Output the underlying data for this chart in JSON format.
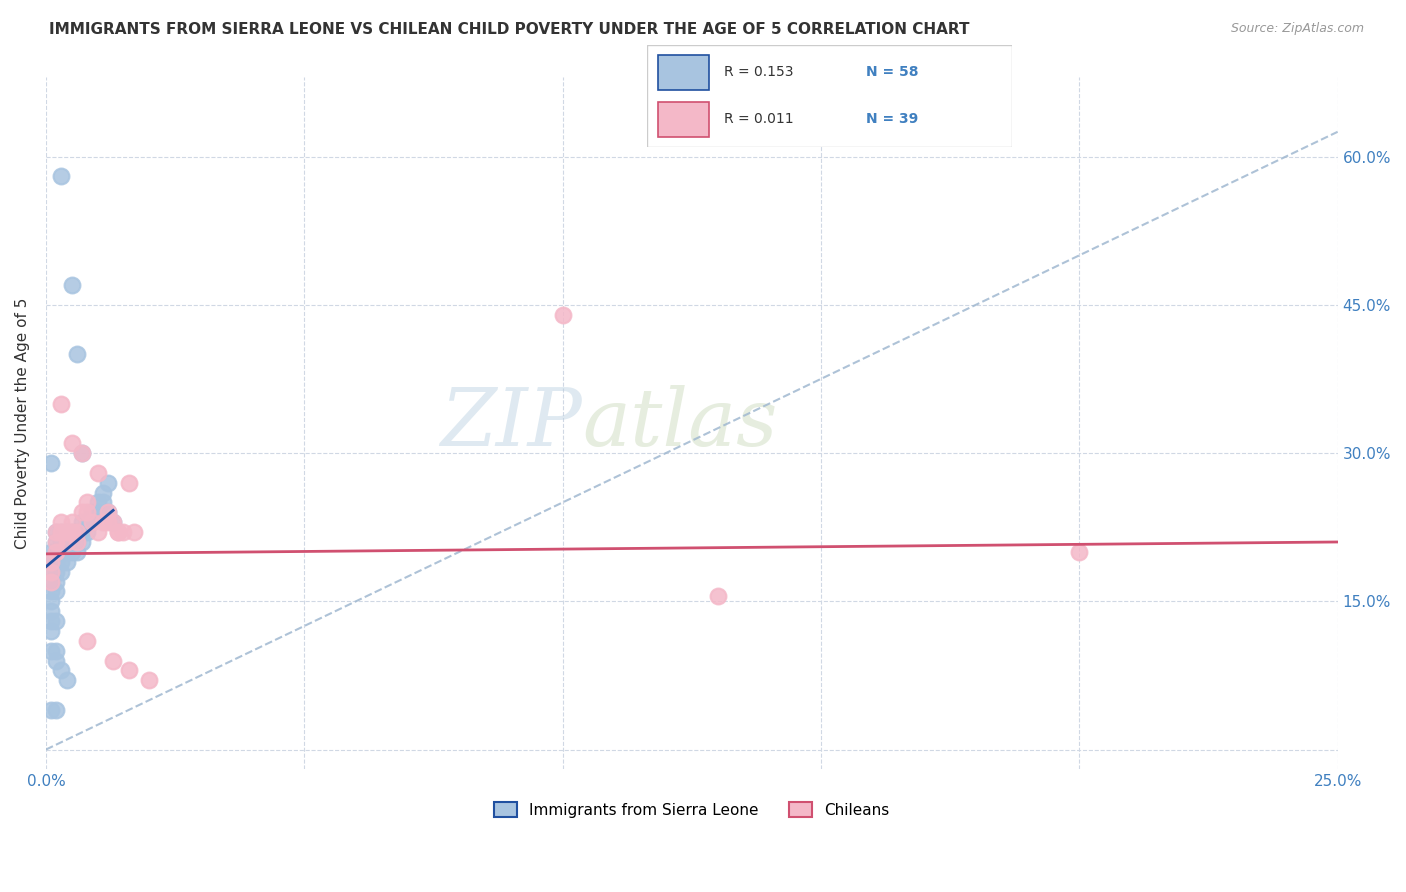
{
  "title": "IMMIGRANTS FROM SIERRA LEONE VS CHILEAN CHILD POVERTY UNDER THE AGE OF 5 CORRELATION CHART",
  "source": "Source: ZipAtlas.com",
  "ylabel": "Child Poverty Under the Age of 5",
  "xlim": [
    0.0,
    0.25
  ],
  "ylim": [
    -0.02,
    0.68
  ],
  "ytick_positions": [
    0.0,
    0.15,
    0.3,
    0.45,
    0.6
  ],
  "xtick_positions": [
    0.0,
    0.05,
    0.1,
    0.15,
    0.2,
    0.25
  ],
  "ytick_labels": [
    "",
    "15.0%",
    "30.0%",
    "45.0%",
    "60.0%"
  ],
  "xtick_labels": [
    "0.0%",
    "",
    "",
    "",
    "",
    "25.0%"
  ],
  "blue_R": "R = 0.153",
  "blue_N": "N = 58",
  "pink_R": "R = 0.011",
  "pink_N": "N = 39",
  "watermark_zip": "ZIP",
  "watermark_atlas": "atlas",
  "blue_color": "#a8c4e0",
  "pink_color": "#f4b8c8",
  "blue_line_color": "#2050a0",
  "pink_line_color": "#d05070",
  "dashed_line_color": "#a0b8d0",
  "legend_label_blue": "Immigrants from Sierra Leone",
  "legend_label_pink": "Chileans",
  "blue_scatter_x": [
    0.001,
    0.001,
    0.001,
    0.001,
    0.001,
    0.001,
    0.001,
    0.001,
    0.002,
    0.002,
    0.002,
    0.002,
    0.002,
    0.002,
    0.002,
    0.003,
    0.003,
    0.003,
    0.003,
    0.003,
    0.004,
    0.004,
    0.004,
    0.004,
    0.005,
    0.005,
    0.005,
    0.006,
    0.006,
    0.006,
    0.007,
    0.007,
    0.007,
    0.008,
    0.008,
    0.009,
    0.009,
    0.01,
    0.01,
    0.011,
    0.011,
    0.012,
    0.012,
    0.013,
    0.003,
    0.005,
    0.006,
    0.007,
    0.001,
    0.002,
    0.002,
    0.003,
    0.004,
    0.001,
    0.002,
    0.001,
    0.002,
    0.001
  ],
  "blue_scatter_y": [
    0.2,
    0.19,
    0.18,
    0.17,
    0.16,
    0.15,
    0.14,
    0.13,
    0.22,
    0.21,
    0.2,
    0.19,
    0.18,
    0.17,
    0.16,
    0.22,
    0.21,
    0.2,
    0.19,
    0.18,
    0.22,
    0.21,
    0.2,
    0.19,
    0.22,
    0.21,
    0.2,
    0.22,
    0.21,
    0.2,
    0.23,
    0.22,
    0.21,
    0.23,
    0.22,
    0.24,
    0.23,
    0.25,
    0.24,
    0.26,
    0.25,
    0.27,
    0.24,
    0.23,
    0.58,
    0.47,
    0.4,
    0.3,
    0.1,
    0.1,
    0.09,
    0.08,
    0.07,
    0.04,
    0.04,
    0.12,
    0.13,
    0.29
  ],
  "pink_scatter_x": [
    0.001,
    0.001,
    0.001,
    0.002,
    0.002,
    0.002,
    0.003,
    0.003,
    0.004,
    0.004,
    0.005,
    0.005,
    0.006,
    0.006,
    0.007,
    0.008,
    0.008,
    0.009,
    0.01,
    0.011,
    0.012,
    0.013,
    0.014,
    0.015,
    0.016,
    0.017,
    0.003,
    0.005,
    0.007,
    0.01,
    0.012,
    0.014,
    0.008,
    0.013,
    0.016,
    0.02,
    0.2,
    0.13,
    0.1
  ],
  "pink_scatter_y": [
    0.19,
    0.18,
    0.17,
    0.22,
    0.21,
    0.2,
    0.23,
    0.22,
    0.22,
    0.21,
    0.23,
    0.22,
    0.22,
    0.21,
    0.24,
    0.25,
    0.24,
    0.23,
    0.22,
    0.23,
    0.24,
    0.23,
    0.22,
    0.22,
    0.27,
    0.22,
    0.35,
    0.31,
    0.3,
    0.28,
    0.23,
    0.22,
    0.11,
    0.09,
    0.08,
    0.07,
    0.2,
    0.155,
    0.44
  ]
}
